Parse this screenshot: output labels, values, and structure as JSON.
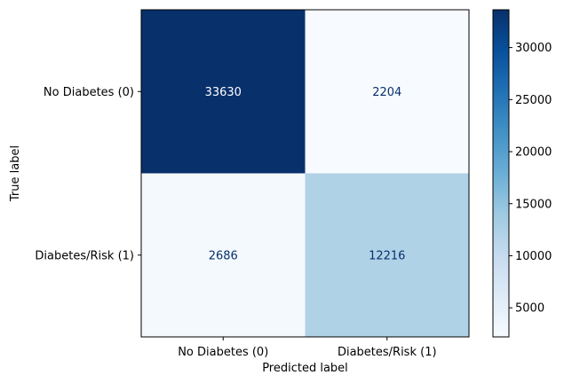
{
  "chart_data": {
    "type": "heatmap",
    "title": "",
    "xlabel": "Predicted label",
    "ylabel": "True label",
    "x_categories": [
      "No Diabetes (0)",
      "Diabetes/Risk (1)"
    ],
    "y_categories": [
      "No Diabetes (0)",
      "Diabetes/Risk (1)"
    ],
    "values": [
      [
        33630,
        2204
      ],
      [
        2686,
        12216
      ]
    ],
    "colormap": "Blues",
    "colorbar": {
      "range": [
        2204,
        33630
      ],
      "ticks": [
        5000,
        10000,
        15000,
        20000,
        25000,
        30000
      ]
    },
    "grid": false,
    "colors": {
      "dark_cell": "#08306b",
      "light_cell": "#f7fbff",
      "text_on_dark": "#ffffff",
      "text_on_light": "#08306b"
    }
  }
}
